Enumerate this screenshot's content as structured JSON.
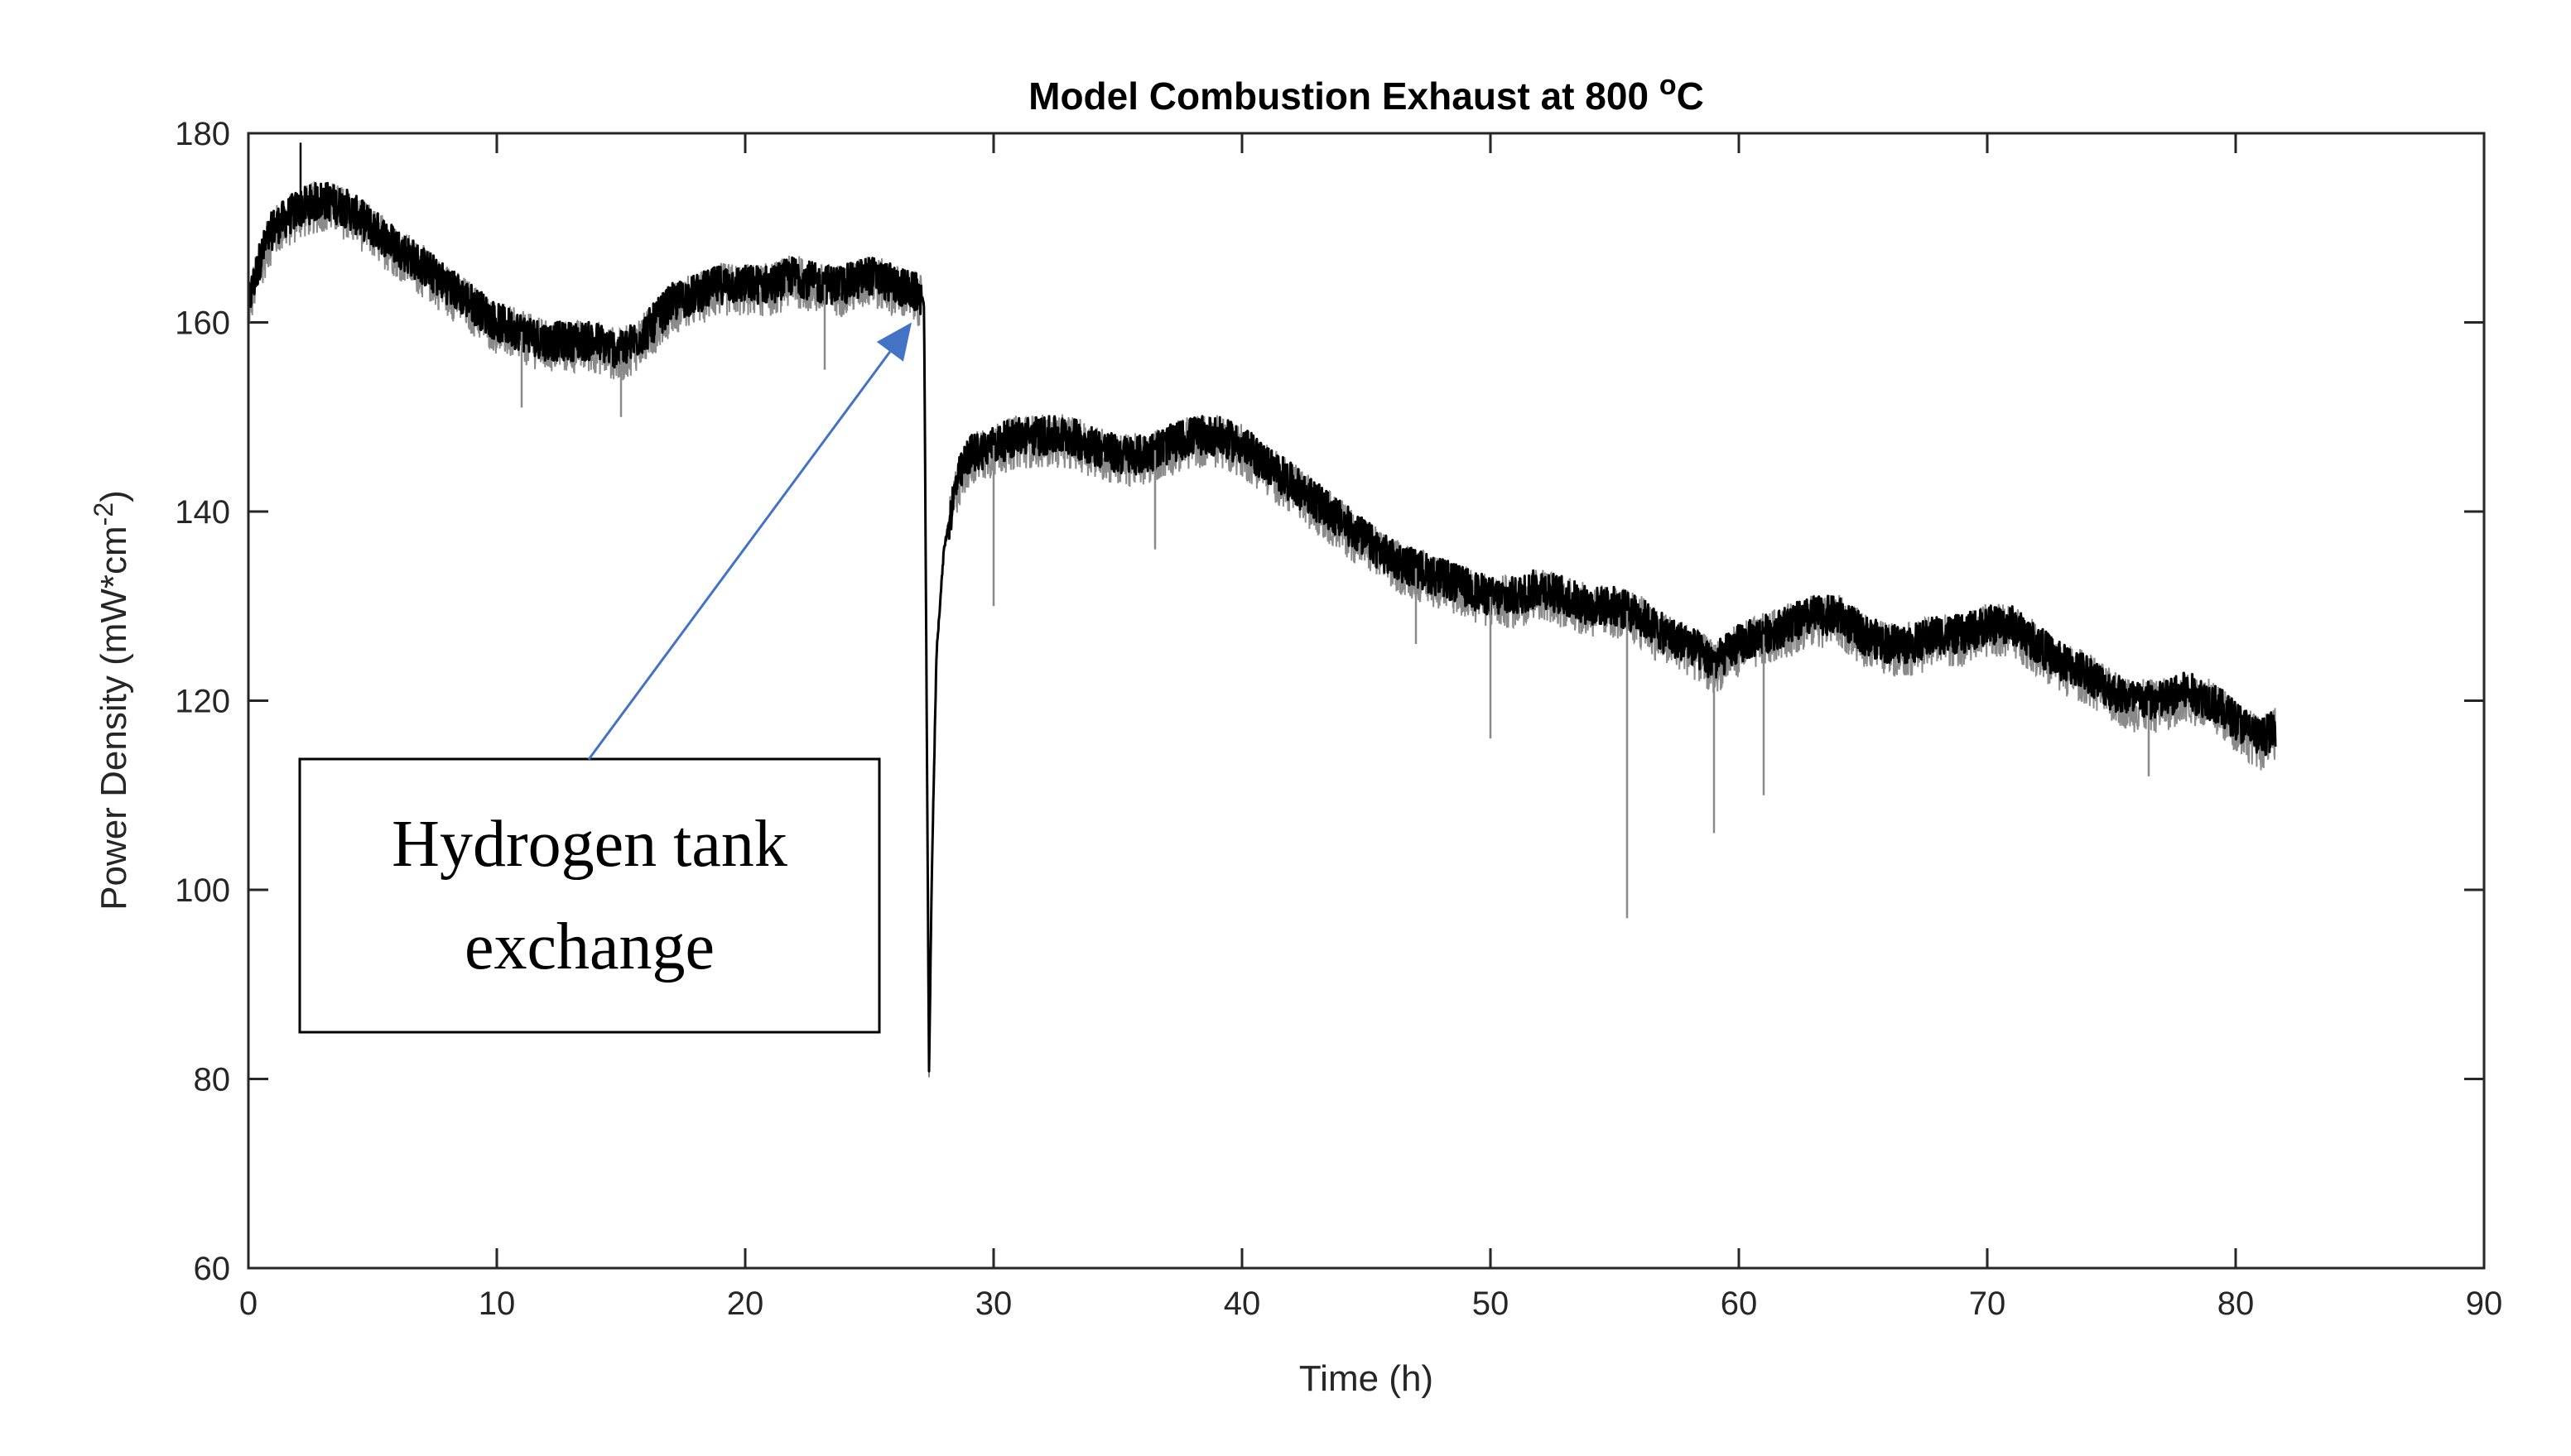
{
  "chart_data": {
    "type": "line",
    "title": "Model Combustion Exhaust at 800 °C",
    "title_parts": {
      "main": "Model Combustion Exhaust at 800 ",
      "degree": "o",
      "unit": "C"
    },
    "xlabel": "Time (h)",
    "ylabel": "Power Density (mW*cm-2)",
    "ylabel_parts": {
      "main": "Power Density (mW*cm",
      "sup": "-2",
      "close": ")"
    },
    "xlim": [
      0,
      90
    ],
    "ylim": [
      60,
      180
    ],
    "xticks": [
      0,
      10,
      20,
      30,
      40,
      50,
      60,
      70,
      80,
      90
    ],
    "yticks": [
      60,
      80,
      100,
      120,
      140,
      160,
      180
    ],
    "grid": false,
    "series": [
      {
        "name": "Power Density",
        "color": "#000000",
        "noise_color": "#8a8a8a",
        "x": [
          0,
          0.5,
          1,
          2,
          3,
          4,
          5,
          6,
          7,
          8,
          9,
          10,
          11,
          12,
          13,
          14,
          15,
          16,
          17,
          18,
          19,
          20,
          21,
          22,
          23,
          24,
          25,
          26,
          27,
          27.2,
          27.4,
          27.5,
          27.7,
          28,
          28.5,
          29,
          30,
          31,
          32,
          33,
          34,
          35,
          36,
          37,
          38,
          39,
          40,
          41,
          42,
          43,
          44,
          45,
          46,
          47,
          48,
          49,
          50,
          51,
          52,
          53,
          54,
          55,
          56,
          57,
          58,
          59,
          60,
          61,
          62,
          63,
          64,
          65,
          66,
          67,
          68,
          69,
          70,
          71,
          72,
          73,
          74,
          75,
          76,
          77,
          78,
          79,
          80,
          81,
          81.6
        ],
        "y": [
          162,
          167,
          170,
          172,
          173,
          172,
          170,
          168,
          166,
          164,
          162,
          160,
          159,
          158,
          158,
          158,
          157,
          159,
          162,
          163,
          164,
          164,
          164,
          165,
          164,
          164,
          165,
          164,
          163,
          162,
          80,
          100,
          125,
          136,
          143,
          146,
          147,
          148,
          148,
          148,
          147,
          146,
          146,
          147,
          148,
          148,
          147,
          145,
          143,
          141,
          139,
          137,
          135,
          134,
          133,
          132,
          131,
          131,
          132,
          131,
          130,
          130,
          129,
          127,
          126,
          124,
          126,
          127,
          128,
          129,
          129,
          127,
          126,
          126,
          127,
          127,
          128,
          128,
          126,
          124,
          123,
          121,
          120,
          120,
          121,
          120,
          118,
          116,
          117
        ],
        "dips": [
          {
            "x": 2.1,
            "y": 179
          },
          {
            "x": 11,
            "y": 151
          },
          {
            "x": 15,
            "y": 150
          },
          {
            "x": 23.2,
            "y": 155
          },
          {
            "x": 30,
            "y": 130
          },
          {
            "x": 36.5,
            "y": 136
          },
          {
            "x": 47,
            "y": 126
          },
          {
            "x": 50,
            "y": 116
          },
          {
            "x": 55.5,
            "y": 97
          },
          {
            "x": 59,
            "y": 106
          },
          {
            "x": 61,
            "y": 110
          },
          {
            "x": 76.5,
            "y": 112
          }
        ]
      }
    ],
    "annotations": [
      {
        "text_lines": [
          "Hydrogen tank",
          "exchange"
        ],
        "arrow_from": {
          "x": 13.7,
          "y": 113.8
        },
        "arrow_to": {
          "x": 26.7,
          "y": 160
        },
        "arrow_color": "#4472c4"
      }
    ]
  }
}
